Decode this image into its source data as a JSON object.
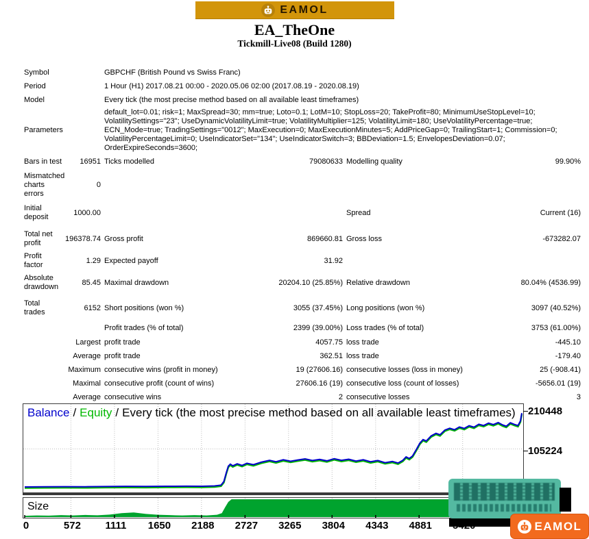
{
  "brand": {
    "name": "EAMOL"
  },
  "header": {
    "title": "EA_TheOne",
    "subtitle": "Tickmill-Live08 (Build 1280)"
  },
  "stats_rows": [
    {
      "h": 20,
      "c1": "Symbol",
      "long": "GBPCHF (British Pound vs Swiss Franc)"
    },
    {
      "h": 20,
      "c1": "Period",
      "long": "1 Hour (H1) 2017.08.21 00:00 - 2020.05.06 02:00 (2017.08.19 - 2020.08.19)"
    },
    {
      "h": 20,
      "c1": "Model",
      "long": "Every tick (the most precise method based on all available least timeframes)"
    },
    {
      "h": 68,
      "c1": "Parameters",
      "long": "default_lot=0.01; risk=1; MaxSpread=30; mm=true; Loto=0.1; LotM=10; StopLoss=20; TakeProfit=80; MinimumUseStopLevel=10; VolatilitySettings=\"23\"; UseDynamicVolatilityLimit=true; VolatilityMultiplier=125; VolatilityLimit=180; UseVolatilityPercentage=true; ECN_Mode=true; TradingSettings=\"0012\"; MaxExecution=0; MaxExecutionMinutes=5; AddPriceGap=0; TrailingStart=1; Commission=0; VolatilityPercentageLimit=0; UseIndicatorSet=\"134\"; UseIndicatorSwitch=3; BBDeviation=1.5; EnvelopesDeviation=0.07; OrderExpireSeconds=3600;"
    },
    {
      "h": 24,
      "c1": "Bars in test",
      "c2": "16951",
      "c3": "Ticks modelled",
      "c4": "79080633",
      "c5": "Modelling quality",
      "c6": "99.90%"
    },
    {
      "h": 44,
      "c1": "Mismatched charts errors",
      "c2": "0",
      "c3": "",
      "c4": "",
      "c5": "",
      "c6": ""
    },
    {
      "h": 38,
      "c1": "Initial deposit",
      "c2": "1000.00",
      "c3": "",
      "c4": "",
      "c5": "Spread",
      "c6": "Current (16)"
    },
    {
      "h": 38,
      "c1": "Total net profit",
      "c2": "196378.74",
      "c3": "Gross profit",
      "c4": "869660.81",
      "c5": "Gross loss",
      "c6": "-673282.07"
    },
    {
      "h": 20,
      "c1": "Profit factor",
      "c2": "1.29",
      "c3": "Expected payoff",
      "c4": "31.92",
      "c5": "",
      "c6": ""
    },
    {
      "h": 38,
      "c1": "Absolute drawdown",
      "c2": "85.45",
      "c3": "Maximal drawdown",
      "c4": "20204.10 (25.85%)",
      "c5": "Relative drawdown",
      "c6": "80.04% (4536.99)"
    },
    {
      "h": 36,
      "c1": "Total trades",
      "c2": "6152",
      "c3": "Short positions (won %)",
      "c4": "3055 (37.45%)",
      "c5": "Long positions (won %)",
      "c6": "3097 (40.52%)"
    },
    {
      "h": 22,
      "c1": "",
      "c2": "",
      "c3": "Profit trades (% of total)",
      "c4": "2399 (39.00%)",
      "c5": "Loss trades (% of total)",
      "c6": "3753 (61.00%)"
    },
    {
      "h": 20,
      "c1": "",
      "c2": "Largest",
      "c3": "profit trade",
      "c4": "4057.75",
      "c5": "loss trade",
      "c6": "-445.10"
    },
    {
      "h": 20,
      "c1": "",
      "c2": "Average",
      "c3": "profit trade",
      "c4": "362.51",
      "c5": "loss trade",
      "c6": "-179.40"
    },
    {
      "h": 20,
      "c1": "",
      "c2": "Maximum",
      "c3": "consecutive wins (profit in money)",
      "c4": "19 (27606.16)",
      "c5": "consecutive losses (loss in money)",
      "c6": "25 (-908.41)"
    },
    {
      "h": 20,
      "c1": "",
      "c2": "Maximal",
      "c3": "consecutive profit (count of wins)",
      "c4": "27606.16 (19)",
      "c5": "consecutive loss (count of losses)",
      "c6": "-5656.01 (19)"
    },
    {
      "h": 20,
      "c1": "",
      "c2": "Average",
      "c3": "consecutive wins",
      "c4": "2",
      "c5": "consecutive losses",
      "c6": "3"
    }
  ],
  "chart_data": {
    "type": "line",
    "legend": {
      "balance": "Balance",
      "equity": "Equity",
      "separator": "/",
      "model": "Every tick (the most precise method based on all available least timeframes)"
    },
    "x_ticks": [
      0,
      572,
      1111,
      1650,
      2188,
      2727,
      3265,
      3804,
      4343,
      4881,
      5420
    ],
    "xmax": 6152,
    "y_axis_labels": [
      "210448",
      "105224"
    ],
    "y_gridline": 105224,
    "ylim": [
      0,
      215000
    ],
    "size_label": "Size",
    "series": [
      {
        "name": "Balance",
        "color": "#0000CC",
        "points": [
          [
            0,
            1000
          ],
          [
            250,
            1400
          ],
          [
            500,
            1700
          ],
          [
            750,
            1500
          ],
          [
            1000,
            2100
          ],
          [
            1250,
            2500
          ],
          [
            1500,
            2300
          ],
          [
            1750,
            2800
          ],
          [
            2000,
            3100
          ],
          [
            2200,
            2900
          ],
          [
            2350,
            3800
          ],
          [
            2430,
            6000
          ],
          [
            2465,
            16000
          ],
          [
            2495,
            40000
          ],
          [
            2520,
            58000
          ],
          [
            2545,
            63500
          ],
          [
            2575,
            59000
          ],
          [
            2630,
            64500
          ],
          [
            2690,
            60000
          ],
          [
            2750,
            66000
          ],
          [
            2830,
            62000
          ],
          [
            2930,
            69000
          ],
          [
            3030,
            74000
          ],
          [
            3110,
            70000
          ],
          [
            3200,
            75500
          ],
          [
            3290,
            71500
          ],
          [
            3380,
            75000
          ],
          [
            3470,
            78000
          ],
          [
            3560,
            73500
          ],
          [
            3650,
            76500
          ],
          [
            3740,
            72500
          ],
          [
            3830,
            78500
          ],
          [
            3920,
            74000
          ],
          [
            4010,
            77000
          ],
          [
            4100,
            72000
          ],
          [
            4190,
            75500
          ],
          [
            4280,
            70000
          ],
          [
            4370,
            73500
          ],
          [
            4460,
            67500
          ],
          [
            4550,
            71000
          ],
          [
            4620,
            66500
          ],
          [
            4680,
            74000
          ],
          [
            4720,
            83500
          ],
          [
            4760,
            79000
          ],
          [
            4800,
            86000
          ],
          [
            4845,
            103000
          ],
          [
            4890,
            121000
          ],
          [
            4930,
            131000
          ],
          [
            4970,
            127000
          ],
          [
            5030,
            141000
          ],
          [
            5090,
            148000
          ],
          [
            5140,
            144000
          ],
          [
            5200,
            157000
          ],
          [
            5260,
            162000
          ],
          [
            5320,
            158000
          ],
          [
            5380,
            165500
          ],
          [
            5440,
            161500
          ],
          [
            5500,
            169000
          ],
          [
            5560,
            165000
          ],
          [
            5620,
            173000
          ],
          [
            5680,
            169500
          ],
          [
            5740,
            176000
          ],
          [
            5800,
            172000
          ],
          [
            5860,
            177500
          ],
          [
            5915,
            171000
          ],
          [
            5960,
            167500
          ],
          [
            6010,
            177000
          ],
          [
            6060,
            172500
          ],
          [
            6105,
            169500
          ],
          [
            6135,
            182000
          ],
          [
            6152,
            203500
          ]
        ]
      },
      {
        "name": "Equity",
        "color": "#00B800",
        "points": [
          [
            0,
            1000
          ],
          [
            250,
            1400
          ],
          [
            500,
            1700
          ],
          [
            750,
            1500
          ],
          [
            1000,
            2100
          ],
          [
            1250,
            2500
          ],
          [
            1500,
            2300
          ],
          [
            1750,
            2800
          ],
          [
            2000,
            3100
          ],
          [
            2200,
            2900
          ],
          [
            2350,
            3800
          ],
          [
            2430,
            6000
          ],
          [
            2465,
            16000
          ],
          [
            2495,
            40000
          ],
          [
            2520,
            58000
          ],
          [
            2545,
            63500
          ],
          [
            2575,
            59000
          ],
          [
            2630,
            64500
          ],
          [
            2690,
            60000
          ],
          [
            2750,
            66000
          ],
          [
            2830,
            62000
          ],
          [
            2930,
            69000
          ],
          [
            3030,
            74000
          ],
          [
            3110,
            70000
          ],
          [
            3200,
            75500
          ],
          [
            3290,
            71500
          ],
          [
            3380,
            75000
          ],
          [
            3470,
            78000
          ],
          [
            3560,
            73500
          ],
          [
            3650,
            76500
          ],
          [
            3740,
            72500
          ],
          [
            3830,
            78500
          ],
          [
            3920,
            74000
          ],
          [
            4010,
            77000
          ],
          [
            4100,
            72000
          ],
          [
            4190,
            75500
          ],
          [
            4280,
            70000
          ],
          [
            4370,
            73500
          ],
          [
            4460,
            67500
          ],
          [
            4550,
            71000
          ],
          [
            4620,
            66500
          ],
          [
            4680,
            74000
          ],
          [
            4720,
            83500
          ],
          [
            4760,
            79000
          ],
          [
            4800,
            86000
          ],
          [
            4845,
            103000
          ],
          [
            4890,
            121000
          ],
          [
            4930,
            131000
          ],
          [
            4970,
            127000
          ],
          [
            5030,
            141000
          ],
          [
            5090,
            148000
          ],
          [
            5140,
            144000
          ],
          [
            5200,
            157000
          ],
          [
            5260,
            162000
          ],
          [
            5320,
            158000
          ],
          [
            5380,
            165500
          ],
          [
            5440,
            161500
          ],
          [
            5500,
            169000
          ],
          [
            5560,
            165000
          ],
          [
            5620,
            173000
          ],
          [
            5680,
            169500
          ],
          [
            5740,
            176000
          ],
          [
            5800,
            172000
          ],
          [
            5860,
            177500
          ],
          [
            5915,
            171000
          ],
          [
            5960,
            167500
          ],
          [
            6010,
            177000
          ],
          [
            6060,
            172500
          ],
          [
            6105,
            169500
          ],
          [
            6135,
            182000
          ],
          [
            6152,
            203500
          ]
        ]
      }
    ],
    "size_series": {
      "name": "Size",
      "color": "#00A32E",
      "points": [
        [
          0,
          0.07
        ],
        [
          150,
          0.09
        ],
        [
          300,
          0.08
        ],
        [
          450,
          0.11
        ],
        [
          600,
          0.09
        ],
        [
          750,
          0.12
        ],
        [
          900,
          0.1
        ],
        [
          1050,
          0.14
        ],
        [
          1200,
          0.22
        ],
        [
          1350,
          0.26
        ],
        [
          1500,
          0.18
        ],
        [
          1650,
          0.13
        ],
        [
          1800,
          0.11
        ],
        [
          1950,
          0.09
        ],
        [
          2100,
          0.11
        ],
        [
          2250,
          0.09
        ],
        [
          2380,
          0.13
        ],
        [
          2440,
          0.22
        ],
        [
          2480,
          0.55
        ],
        [
          2520,
          0.85
        ],
        [
          2560,
          1.0
        ],
        [
          6152,
          1.0
        ]
      ]
    }
  },
  "footer_logo": {
    "name": "EAMOL"
  }
}
